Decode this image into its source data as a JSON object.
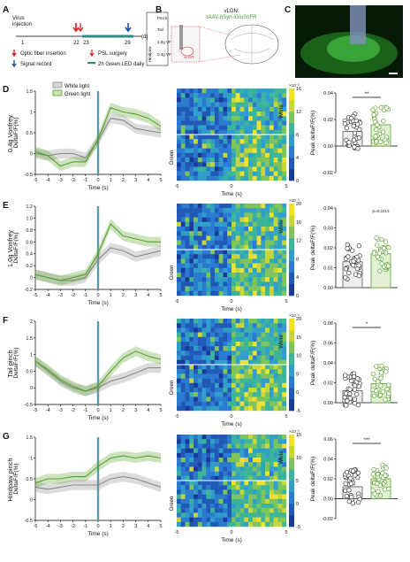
{
  "panel_letters": {
    "A": "A",
    "B": "B",
    "C": "C",
    "D": "D",
    "E": "E",
    "F": "F",
    "G": "G"
  },
  "timeline": {
    "virus_injection": "Virus\ninjection",
    "ticks": [
      "1",
      "22",
      "23",
      "29",
      "(d)"
    ],
    "legend": [
      {
        "label": "Optic fiber insertion",
        "icon": "arrow-down-icon",
        "color": "#d22020"
      },
      {
        "label": "PSL surgery",
        "icon": "arrow-down-icon",
        "color": "#d22020"
      },
      {
        "label": "Signal record",
        "icon": "arrow-down-icon",
        "color": "#1f4fa0"
      },
      {
        "label": "2h Green LED daily",
        "icon": "bar-icon",
        "color": "#2f8a8a"
      }
    ],
    "stim_labels": [
      "Pinch",
      "Tail",
      "1.0g VF",
      "0.4g VF"
    ],
    "stim_group": "Hindpaw"
  },
  "panel_b": {
    "title": "vLGN:",
    "subtitle": "rAAV-hSyn-iGluSnFR",
    "region_label": "vLGN"
  },
  "legend": {
    "white": "White light",
    "green": "Green light"
  },
  "colors": {
    "white_light": "#8a8a8a",
    "green_light": "#5aa02c",
    "stim_bar": "#4f9fb0",
    "heatmap_high": "#f0e030",
    "heatmap_low": "#1a3a9a"
  },
  "chart_data": [
    {
      "type": "line",
      "row_label": "0.4g Vonfrey",
      "ylabel": "DeltaF/F(%)",
      "xlabel": "Time (s)",
      "x": [
        -5,
        -4,
        -3,
        -2,
        -1,
        0,
        1,
        2,
        3,
        4,
        5
      ],
      "ylim": [
        -0.5,
        1.5
      ],
      "yticks": [
        "-0.5",
        "0",
        "0.5",
        "1",
        "1.5"
      ],
      "series": [
        {
          "name": "White light",
          "values": [
            0.0,
            -0.05,
            0.0,
            0.0,
            -0.1,
            0.3,
            0.85,
            0.8,
            0.6,
            0.55,
            0.5
          ]
        },
        {
          "name": "Green light",
          "values": [
            0.05,
            -0.05,
            -0.3,
            -0.2,
            -0.2,
            0.35,
            1.1,
            1.0,
            0.95,
            0.85,
            0.65
          ]
        }
      ]
    },
    {
      "type": "line",
      "row_label": "1.0g Vonfrey",
      "ylabel": "DeltaF/F(%)",
      "xlabel": "Time (s)",
      "x": [
        -5,
        -4,
        -3,
        -2,
        -1,
        0,
        1,
        2,
        3,
        4,
        5
      ],
      "ylim": [
        -0.2,
        1.2
      ],
      "yticks": [
        "-0.2",
        "0",
        "0.2",
        "0.4",
        "0.6",
        "0.8",
        "1.0",
        "1.2"
      ],
      "series": [
        {
          "name": "White light",
          "values": [
            0.05,
            0.0,
            -0.05,
            -0.05,
            0.0,
            0.3,
            0.5,
            0.45,
            0.35,
            0.4,
            0.45
          ]
        },
        {
          "name": "Green light",
          "values": [
            0.05,
            0.0,
            -0.05,
            0.0,
            0.05,
            0.4,
            0.9,
            0.7,
            0.65,
            0.6,
            0.6
          ]
        }
      ]
    },
    {
      "type": "line",
      "row_label": "Tail pinch",
      "ylabel": "DeltaF/F(%)",
      "xlabel": "Time (s)",
      "x": [
        -5,
        -4,
        -3,
        -2,
        -1,
        0,
        1,
        2,
        3,
        4,
        5
      ],
      "ylim": [
        -0.5,
        2
      ],
      "yticks": [
        "-0.5",
        "0",
        "0.5",
        "1",
        "1.5",
        "2"
      ],
      "series": [
        {
          "name": "White light",
          "values": [
            0.8,
            0.5,
            0.2,
            0.0,
            -0.1,
            0.0,
            0.2,
            0.3,
            0.45,
            0.6,
            0.6
          ]
        },
        {
          "name": "Green light",
          "values": [
            0.8,
            0.55,
            0.25,
            0.05,
            -0.1,
            0.05,
            0.5,
            0.9,
            1.1,
            0.95,
            0.85
          ]
        }
      ]
    },
    {
      "type": "line",
      "row_label": "Hindpaw pinch",
      "ylabel": "DeltaF/F(%)",
      "xlabel": "Time (s)",
      "x": [
        -5,
        -4,
        -3,
        -2,
        -1,
        0,
        1,
        2,
        3,
        4,
        5
      ],
      "ylim": [
        -0.5,
        1.5
      ],
      "yticks": [
        "-0.5",
        "0",
        "0.5",
        "1",
        "1.5"
      ],
      "series": [
        {
          "name": "White light",
          "values": [
            0.3,
            0.25,
            0.3,
            0.35,
            0.35,
            0.35,
            0.5,
            0.55,
            0.5,
            0.4,
            0.3
          ]
        },
        {
          "name": "Green light",
          "values": [
            0.4,
            0.5,
            0.5,
            0.55,
            0.55,
            0.8,
            1.0,
            1.05,
            1.0,
            1.05,
            1.0
          ]
        }
      ]
    }
  ],
  "heatmaps": [
    {
      "rows": [
        "White",
        "Green"
      ],
      "cbar_exp": "×10⁻³",
      "cbar_ticks": [
        "16",
        "12",
        "8",
        "4",
        "0"
      ],
      "xticks": [
        "-5",
        "0",
        "5"
      ],
      "xlabel": "Time (s)"
    },
    {
      "rows": [
        "White",
        "Green"
      ],
      "cbar_exp": "×10⁻³",
      "cbar_ticks": [
        "20",
        "16",
        "12",
        "8",
        "4",
        "0"
      ],
      "xticks": [
        "-5",
        "0",
        "5"
      ],
      "xlabel": "Time (s)"
    },
    {
      "rows": [
        "White",
        "Green"
      ],
      "cbar_exp": "×10⁻³",
      "cbar_ticks": [
        "20",
        "15",
        "10",
        "5",
        "0",
        "-5"
      ],
      "xticks": [
        "-5",
        "0",
        "5"
      ],
      "xlabel": "Time (s)"
    },
    {
      "rows": [
        "White",
        "Green"
      ],
      "cbar_exp": "×10⁻³",
      "cbar_ticks": [
        "15",
        "10",
        "5",
        "0",
        "-5"
      ],
      "xticks": [
        "-5",
        "0",
        "5"
      ],
      "xlabel": "Time (s)"
    }
  ],
  "scatter_bars": [
    {
      "ylabel": "Peak deltaF/F(%)",
      "ylim": [
        -0.02,
        0.04
      ],
      "yticks": [
        "0.04",
        "0.02",
        "0.00",
        "-0.02"
      ],
      "sig": "**",
      "bar_white": 0.011,
      "bar_green": 0.016
    },
    {
      "ylabel": "Peak deltaF/F(%)",
      "ylim": [
        0.0,
        0.04
      ],
      "yticks": [
        "0.04",
        "0.03",
        "0.02",
        "0.01",
        "0.00"
      ],
      "sig": "p=0.2213",
      "bar_white": 0.013,
      "bar_green": 0.017
    },
    {
      "ylabel": "Peak deltaF/F(%)",
      "ylim": [
        0.0,
        0.08
      ],
      "yticks": [
        "0.08",
        "0.06",
        "0.04",
        "0.02",
        "0.00"
      ],
      "sig": "*",
      "bar_white": 0.012,
      "bar_green": 0.019
    },
    {
      "ylabel": "Peak deltaF/F(%)",
      "ylim": [
        -0.02,
        0.06
      ],
      "yticks": [
        "0.06",
        "0.04",
        "0.02",
        "0.00",
        "-0.02"
      ],
      "sig": "***",
      "bar_white": 0.012,
      "bar_green": 0.02
    }
  ]
}
